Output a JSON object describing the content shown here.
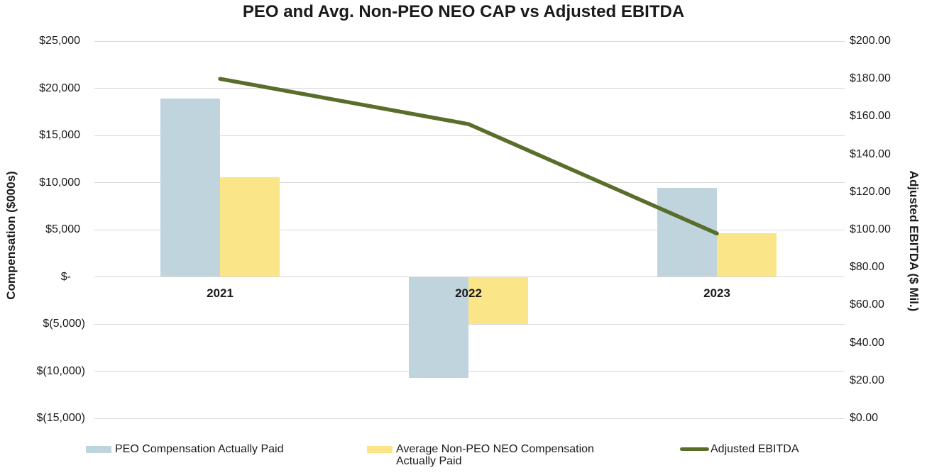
{
  "chart_data": {
    "type": "bar+line",
    "title": "PEO and Avg. Non-PEO NEO CAP vs Adjusted EBITDA",
    "categories": [
      "2021",
      "2022",
      "2023"
    ],
    "series": [
      {
        "name": "PEO Compensation Actually Paid",
        "type": "bar",
        "axis": "left",
        "color": "#bfd4dc",
        "values": [
          18900,
          -10700,
          9450
        ]
      },
      {
        "name": "Average Non-PEO NEO Compensation Actually Paid",
        "type": "bar",
        "axis": "left",
        "color": "#fae588",
        "values": [
          10550,
          -5000,
          4600
        ]
      },
      {
        "name": "Adjusted EBITDA",
        "type": "line",
        "axis": "right",
        "color": "#586e2a",
        "values": [
          180,
          156,
          98
        ]
      }
    ],
    "left_axis": {
      "title": "Compensation ($000s)",
      "min": -15000,
      "max": 25000,
      "step": 5000,
      "ticks": [
        "$25,000",
        "$20,000",
        "$15,000",
        "$10,000",
        "$5,000",
        "$-",
        "$(5,000)",
        "$(10,000)",
        "$(15,000)"
      ]
    },
    "right_axis": {
      "title": "Adjusted EBITDA ($ Mil.)",
      "min": 0,
      "max": 200,
      "step": 20,
      "ticks": [
        "$200.00",
        "$180.00",
        "$160.00",
        "$140.00",
        "$120.00",
        "$100.00",
        "$80.00",
        "$60.00",
        "$40.00",
        "$20.00",
        "$0.00"
      ]
    },
    "legend": {
      "position": "bottom",
      "items": [
        "PEO Compensation Actually Paid",
        "Average Non-PEO NEO Compensation Actually Paid",
        "Adjusted EBITDA"
      ]
    },
    "grid": "horizontal",
    "styles": {
      "gridline_color": "#d9d9d9",
      "text_color": "#1a1a1a",
      "background": "#ffffff"
    }
  }
}
